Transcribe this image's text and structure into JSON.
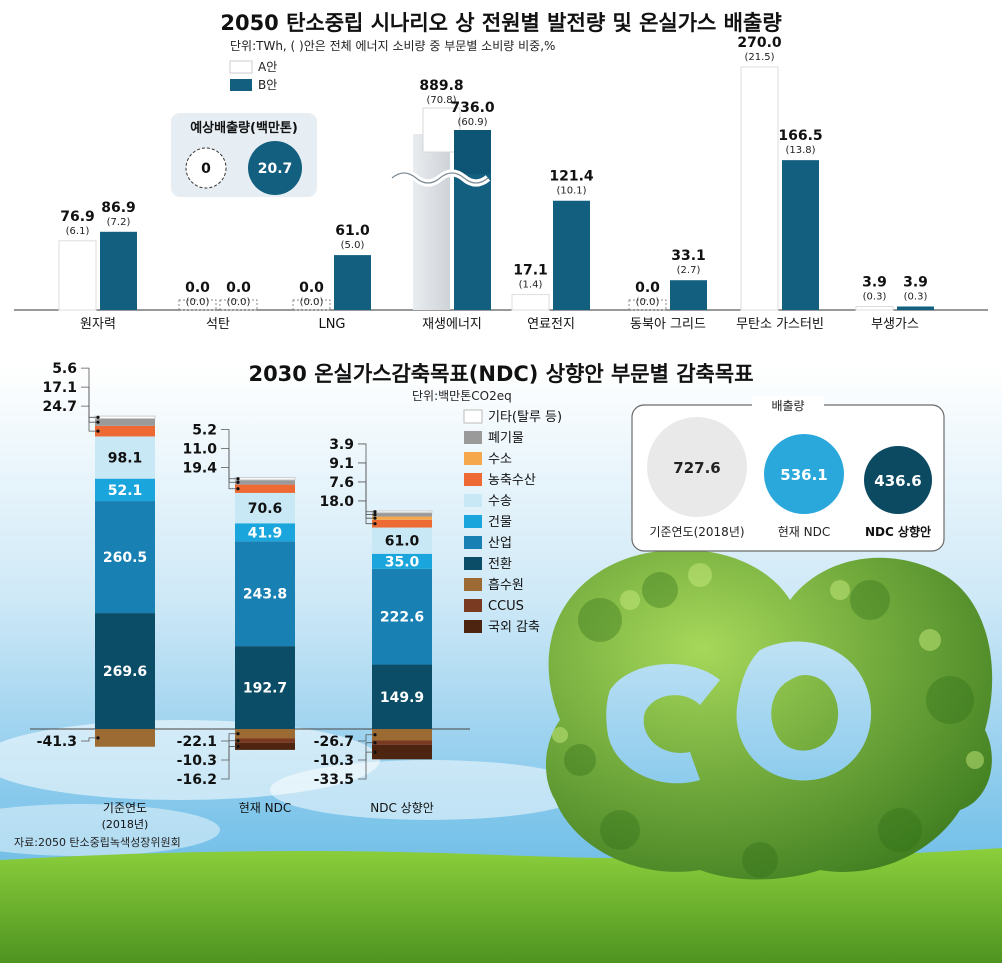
{
  "chart1": {
    "title": "2050 탄소중립 시나리오 상 전원별 발전량 및 온실가스 배출량",
    "unit": "단위:TWh, ( )안은 전체 에너지 소비량 중 부문별 소비량 비중,%",
    "legend": [
      "A안",
      "B안"
    ],
    "emission_box": {
      "title": "예상배출량(백만톤)",
      "a": "0",
      "b": "20.7"
    }
  },
  "chart2": {
    "title": "2030 온실가스감축목표(NDC) 상향안 부문별 감축목표",
    "unit": "단위:백만톤CO2eq",
    "emission_box": {
      "title": "배출량",
      "items": [
        {
          "value": "727.6",
          "label": "기준연도(2018년)"
        },
        {
          "value": "536.1",
          "label": "현재 NDC"
        },
        {
          "value": "436.6",
          "label": "NDC 상향안"
        }
      ]
    }
  },
  "source": "자료:2050 탄소중립녹색성장위원회",
  "colors": {
    "a": "#ffffff",
    "b": "#135f80",
    "seg": {
      "기타(탈루 등)": "#ffffff",
      "폐기물": "#9a9a9a",
      "수소": "#f6a94c",
      "농축수산": "#ed6a35",
      "수송": "#c9e8f6",
      "건물": "#1aa6dc",
      "산업": "#1980b3",
      "전환": "#0b4d66",
      "흡수원": "#9c6b34",
      "CCUS": "#7a3a22",
      "국외 감축": "#4c2410"
    }
  },
  "chart_data": [
    {
      "type": "bar",
      "categories": [
        "원자력",
        "석탄",
        "LNG",
        "재생에너지",
        "연료전지",
        "동북아 그리드",
        "무탄소 가스터빈",
        "부생가스"
      ],
      "series": [
        {
          "name": "A안",
          "values": [
            76.9,
            0.0,
            0.0,
            889.8,
            17.1,
            0.0,
            270.0,
            3.9
          ],
          "shares": [
            6.1,
            0.0,
            0.0,
            70.8,
            1.4,
            0.0,
            21.5,
            0.3
          ]
        },
        {
          "name": "B안",
          "values": [
            86.9,
            0.0,
            61.0,
            736.0,
            121.4,
            33.1,
            166.5,
            3.9
          ],
          "shares": [
            7.2,
            0.0,
            5.0,
            60.9,
            10.1,
            2.7,
            13.8,
            0.3
          ]
        }
      ],
      "axis_break": true
    },
    {
      "type": "bar",
      "stacked": true,
      "categories": [
        "기준연도\n(2018년)",
        "현재 NDC",
        "NDC 상향안"
      ],
      "series": [
        {
          "name": "기타(탈루 등)",
          "values": [
            5.6,
            5.2,
            3.9
          ]
        },
        {
          "name": "폐기물",
          "values": [
            17.1,
            11.0,
            9.1
          ]
        },
        {
          "name": "수소",
          "values": [
            0,
            0,
            7.6
          ]
        },
        {
          "name": "농축수산",
          "values": [
            24.7,
            19.4,
            18.0
          ]
        },
        {
          "name": "수송",
          "values": [
            98.1,
            70.6,
            61.0
          ]
        },
        {
          "name": "건물",
          "values": [
            52.1,
            41.9,
            35.0
          ]
        },
        {
          "name": "산업",
          "values": [
            260.5,
            243.8,
            222.6
          ]
        },
        {
          "name": "전환",
          "values": [
            269.6,
            192.7,
            149.9
          ]
        },
        {
          "name": "흡수원",
          "values": [
            -41.3,
            -22.1,
            -26.7
          ]
        },
        {
          "name": "CCUS",
          "values": [
            0,
            -10.3,
            -10.3
          ]
        },
        {
          "name": "국외 감축",
          "values": [
            0,
            -16.2,
            -33.5
          ]
        }
      ]
    }
  ]
}
